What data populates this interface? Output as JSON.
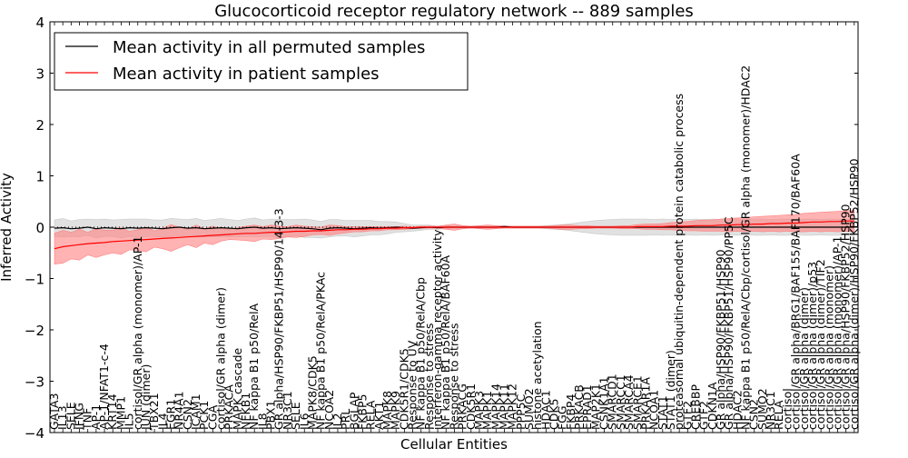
{
  "chart_data": {
    "type": "line",
    "title": "Glucocorticoid receptor regulatory network -- 889 samples",
    "xlabel": "Cellular Entities",
    "ylabel": "Inferred Activity",
    "ylim": [
      -4,
      4
    ],
    "yticks": [
      -4,
      -3,
      -2,
      -1,
      0,
      1,
      2,
      3,
      4
    ],
    "ytick_labels": [
      "−4",
      "−3",
      "−2",
      "−1",
      "0",
      "1",
      "2",
      "3",
      "4"
    ],
    "grid": false,
    "legend_position": "top-left",
    "reference_line_y": 0,
    "categories": [
      "GATA3",
      "IL13",
      "SELE",
      "IFNG",
      "TNF",
      "AP-1",
      "AP-1/NFAT1-c-4",
      "KRT14",
      "MMP1",
      "IL5",
      "cortisol/GR alpha (monomer)/AP-1",
      "JUN (dimer)",
      "TBX21",
      "IL4",
      "EGR1",
      "NR4A1",
      "CSN2",
      "ICAM1",
      "PCK1",
      "CGA",
      "cortisol/GR alpha (dimer)",
      "PRKACA",
      "MAPK cascade",
      "NFKB1",
      "NF kappa B1 p50/RelA",
      "IL8",
      "PBX1",
      "GR alpha/HSP90/FKBP51/HSP90/14-3-3",
      "NR3C1",
      "SELE",
      "IL6",
      "MAPK8/CDK5",
      "NF kappa B1 p50/RelA/PKAc",
      "NCOA2",
      "IL2",
      "PRL",
      "BGLAP",
      "FKBP5",
      "RELA",
      "AKT1",
      "MAPK8",
      "MAPK9",
      "CDK5R1/CDK5",
      "Response to UV",
      "NF kappa B1 p50/RelA/Cbp",
      "Response to stress",
      "interferon-gamma receptor activity",
      "NF kappa B1 p50/RelA/BAF60A",
      "Response to stress",
      "PRKACG",
      "CDK5R1",
      "MAPK3",
      "MAPK1",
      "MAPK14",
      "MAPK11",
      "MAPK12",
      "PPP5C",
      "SUMO2",
      "histone acetylation",
      "HDAC1",
      "CDK5",
      "FGG",
      "FKBP4",
      "PRKACB",
      "EPRAD1",
      "MAP2K1",
      "CSNK1A1",
      "SMARCD1",
      "SMARCC1",
      "SMARCA4",
      "SMARCE1",
      "PRKAR1A",
      "NCOA1",
      "STAT1",
      "STAT1 (dimer)",
      "proteasomal ubiquitin-dependent protein catabolic process",
      "GTF2",
      "CREBBP",
      "GTF2",
      "CDKN1A",
      "GR alpha/HSP90/FKBP51/HSP90",
      "GR alpha/HSP90/FKBP51/HSP90/PP5C",
      "HDAC2",
      "NF kappa B1 p50/RelA/Cbp/cortisol/GR alpha (monomer)/HDAC2",
      "CSN2",
      "SUMO2",
      "NR3C1",
      "RELA",
      "cortisol",
      "cortisol/GR alpha/BRG1/BAF155/BAF170/BAF60A",
      "cortisol/GR alpha (dimer)",
      "cortisol/GR alpha (dimer)/p53",
      "cortisol/GR alpha (dimer)/TIF2",
      "cortisol/GR alpha (monomer)",
      "cortisol/GR alpha (monomer)/AP-1",
      "cortisol/GR alpha/HSP90/FKBP52/HSP90",
      "cortisol/GR alpha (dimer)/HSP90/FKBP52/HSP90"
    ],
    "series": [
      {
        "name": "Mean activity in all permuted samples",
        "color": "#000000",
        "band_color": "#c8c8c8",
        "values": [
          -0.02,
          -0.01,
          -0.03,
          -0.02,
          0.0,
          -0.03,
          -0.01,
          -0.02,
          -0.03,
          -0.01,
          -0.02,
          -0.01,
          -0.02,
          -0.03,
          -0.01,
          0.0,
          -0.02,
          -0.01,
          -0.03,
          -0.02,
          -0.01,
          -0.02,
          -0.03,
          -0.01,
          0.0,
          -0.02,
          -0.01,
          -0.03,
          -0.02,
          -0.01,
          -0.02,
          -0.03,
          -0.05,
          -0.02,
          -0.01,
          -0.02,
          -0.03,
          -0.02,
          -0.01,
          -0.02,
          -0.01,
          0.0,
          -0.01,
          -0.02,
          -0.01,
          0.0,
          -0.01,
          0.0,
          0.0,
          0.0,
          0.0,
          0.0,
          0.0,
          0.0,
          0.01,
          0.0,
          0.0,
          0.0,
          0.0,
          0.0,
          0.0,
          0.0,
          0.0,
          0.0,
          0.0,
          0.0,
          0.0,
          0.0,
          0.0,
          0.0,
          0.0,
          0.0,
          0.0,
          0.0,
          0.0,
          0.0,
          0.0,
          0.0,
          0.0,
          0.0,
          0.0,
          0.0,
          0.0,
          0.0,
          0.0,
          0.0,
          0.0,
          0.0,
          0.0,
          0.0,
          0.0,
          0.0,
          0.0,
          0.0,
          0.0,
          0.0,
          0.0
        ],
        "band_halfwidth": [
          0.16,
          0.18,
          0.15,
          0.17,
          0.16,
          0.18,
          0.17,
          0.16,
          0.18,
          0.17,
          0.18,
          0.17,
          0.16,
          0.17,
          0.18,
          0.16,
          0.17,
          0.18,
          0.16,
          0.17,
          0.18,
          0.17,
          0.16,
          0.17,
          0.18,
          0.16,
          0.17,
          0.18,
          0.17,
          0.16,
          0.18,
          0.17,
          0.16,
          0.17,
          0.16,
          0.15,
          0.16,
          0.15,
          0.14,
          0.13,
          0.12,
          0.1,
          0.08,
          0.06,
          0.05,
          0.04,
          0.03,
          0.03,
          0.02,
          0.02,
          0.02,
          0.02,
          0.02,
          0.02,
          0.02,
          0.02,
          0.02,
          0.02,
          0.02,
          0.03,
          0.04,
          0.05,
          0.07,
          0.09,
          0.11,
          0.13,
          0.14,
          0.15,
          0.16,
          0.16,
          0.16,
          0.16,
          0.15,
          0.16,
          0.15,
          0.16,
          0.15,
          0.16,
          0.15,
          0.16,
          0.15,
          0.16,
          0.16,
          0.15,
          0.16,
          0.16,
          0.15,
          0.16,
          0.16,
          0.15,
          0.16,
          0.16,
          0.15,
          0.16,
          0.16,
          0.15,
          0.16
        ]
      },
      {
        "name": "Mean activity in patient samples",
        "color": "#ff0000",
        "band_color": "#ff8080",
        "values": [
          -0.42,
          -0.38,
          -0.36,
          -0.34,
          -0.32,
          -0.31,
          -0.3,
          -0.28,
          -0.27,
          -0.26,
          -0.25,
          -0.24,
          -0.23,
          -0.22,
          -0.21,
          -0.2,
          -0.19,
          -0.18,
          -0.17,
          -0.16,
          -0.15,
          -0.14,
          -0.13,
          -0.12,
          -0.12,
          -0.11,
          -0.1,
          -0.1,
          -0.09,
          -0.08,
          -0.08,
          -0.07,
          -0.07,
          -0.06,
          -0.05,
          -0.05,
          -0.04,
          -0.04,
          -0.03,
          -0.03,
          -0.02,
          -0.02,
          -0.01,
          -0.01,
          0.0,
          0.0,
          0.0,
          0.0,
          0.0,
          0.0,
          0.0,
          0.0,
          0.0,
          0.0,
          0.0,
          0.0,
          0.0,
          0.0,
          0.0,
          0.0,
          0.0,
          0.0,
          0.0,
          0.0,
          0.0,
          0.0,
          0.0,
          0.0,
          0.0,
          0.0,
          0.01,
          0.01,
          0.01,
          0.01,
          0.02,
          0.02,
          0.02,
          0.03,
          0.03,
          0.03,
          0.04,
          0.04,
          0.05,
          0.05,
          0.06,
          0.06,
          0.07,
          0.07,
          0.08,
          0.08,
          0.09,
          0.1,
          0.1,
          0.11,
          0.11,
          0.12,
          0.12
        ],
        "band_halfwidth": [
          0.3,
          0.32,
          0.26,
          0.3,
          0.22,
          0.28,
          0.24,
          0.22,
          0.26,
          0.18,
          0.2,
          0.24,
          0.16,
          0.2,
          0.26,
          0.2,
          0.15,
          0.22,
          0.14,
          0.18,
          0.12,
          0.1,
          0.12,
          0.14,
          0.16,
          0.12,
          0.14,
          0.12,
          0.1,
          0.12,
          0.1,
          0.08,
          0.07,
          0.1,
          0.08,
          0.06,
          0.05,
          0.05,
          0.04,
          0.04,
          0.03,
          0.03,
          0.03,
          0.02,
          0.02,
          0.02,
          0.02,
          0.04,
          0.06,
          0.03,
          0.02,
          0.03,
          0.04,
          0.03,
          0.02,
          0.02,
          0.02,
          0.02,
          0.02,
          0.02,
          0.03,
          0.04,
          0.04,
          0.03,
          0.03,
          0.02,
          0.02,
          0.02,
          0.03,
          0.03,
          0.04,
          0.05,
          0.05,
          0.06,
          0.07,
          0.08,
          0.09,
          0.1,
          0.11,
          0.11,
          0.12,
          0.13,
          0.13,
          0.14,
          0.14,
          0.15,
          0.15,
          0.16,
          0.16,
          0.17,
          0.18,
          0.18,
          0.19,
          0.19,
          0.2,
          0.2,
          0.21
        ]
      }
    ]
  }
}
